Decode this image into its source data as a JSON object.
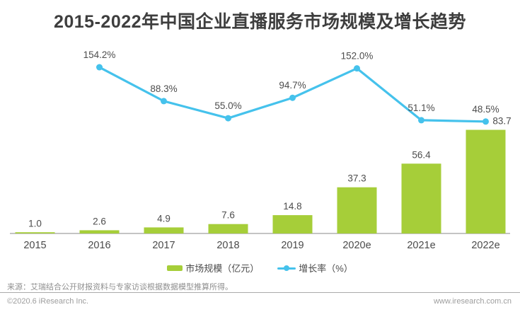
{
  "title": "2015-2022年中国企业直播服务市场规模及增长趋势",
  "colors": {
    "bar": "#a6ce39",
    "line": "#45c2ec",
    "title": "#3e3e3e",
    "value_label": "#4d4d4d",
    "axis_label": "#4a4a4a",
    "axis_line": "#8a8a8a"
  },
  "chart_data": {
    "type": "bar",
    "subtype": "bar+line combo",
    "title": "2015-2022年中国企业直播服务市场规模及增长趋势",
    "categories": [
      "2015",
      "2016",
      "2017",
      "2018",
      "2019",
      "2020e",
      "2021e",
      "2022e"
    ],
    "series": [
      {
        "name": "市场规模（亿元）",
        "type": "bar",
        "color": "#a6ce39",
        "values": [
          1.0,
          2.6,
          4.9,
          7.6,
          14.8,
          37.3,
          56.4,
          83.7
        ],
        "labels": [
          "1.0",
          "2.6",
          "4.9",
          "7.6",
          "14.8",
          "37.3",
          "56.4",
          "83.7"
        ]
      },
      {
        "name": "增长率（%）",
        "type": "line",
        "color": "#45c2ec",
        "values": [
          null,
          154.2,
          88.3,
          55.0,
          94.7,
          152.0,
          51.1,
          48.5
        ],
        "labels": [
          "154.2%",
          "88.3%",
          "55.0%",
          "94.7%",
          "152.0%",
          "51.1%",
          "48.5%"
        ]
      }
    ],
    "xlabel": "",
    "ylabel": "",
    "grid": false,
    "legend_position": "bottom",
    "axes_hidden": true,
    "bar_axis_range": [
      0,
      90
    ],
    "line_axis_range": [
      0,
      290
    ]
  },
  "footer": {
    "source": "来源：艾瑞结合公开财报资料与专家访谈根据数据模型推算所得。",
    "copyright": "©2020.6 iResearch Inc.",
    "website": "www.iresearch.com.cn"
  }
}
